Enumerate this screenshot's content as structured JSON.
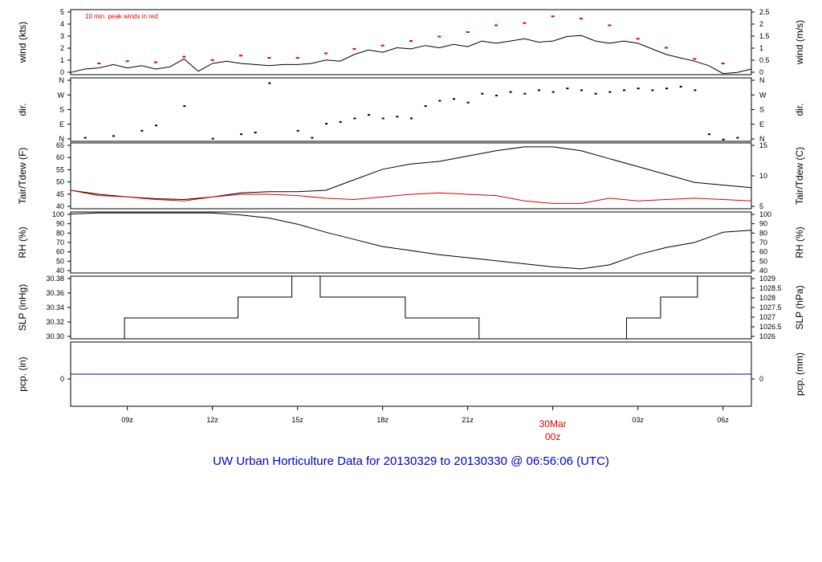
{
  "title": "UW Urban Horticulture Data for 20130329  to  20130330 @ 06:56:06  (UTC)",
  "colors": {
    "data": "#000000",
    "peak": "#e00000",
    "dew": "#e00000",
    "precip": "#0000cc",
    "title": "#0000cc",
    "date": "#e00000"
  },
  "chart_data": [
    {
      "id": "wind",
      "type": "line",
      "ylabel_left": "wind (kts)",
      "ylabel_right": "wind (m/s)",
      "ylim": [
        0,
        5.8
      ],
      "yticks_left": [
        "0",
        "1",
        "2",
        "3",
        "4",
        "5"
      ],
      "yticks_right": [
        "0",
        "0.5",
        "1",
        "1.5",
        "2",
        "2.5"
      ],
      "annotation": "10 min. peak winds in red",
      "series": [
        {
          "x_hours": [
            0,
            0.5,
            1,
            1.5,
            2,
            2.5,
            3,
            3.5,
            4,
            4.5,
            5,
            5.5,
            6,
            6.5,
            7,
            7.5,
            8,
            8.5,
            9,
            9.5,
            10,
            10.5,
            11,
            11.5,
            12,
            12.5,
            13,
            13.5,
            14,
            14.5,
            15,
            15.5,
            16,
            16.5,
            17,
            17.5,
            18,
            18.5,
            19,
            19.5,
            20,
            20.5,
            21,
            21.5,
            22,
            22.5,
            23,
            23.5,
            24
          ],
          "values": [
            0.2,
            0.5,
            0.6,
            0.9,
            0.6,
            0.8,
            0.5,
            0.7,
            1.4,
            0.3,
            1.0,
            1.2,
            1.0,
            0.9,
            0.8,
            0.9,
            0.9,
            1.0,
            1.3,
            1.2,
            1.8,
            2.2,
            2.0,
            2.4,
            2.3,
            2.6,
            2.4,
            2.7,
            2.5,
            3.0,
            2.8,
            3.0,
            3.2,
            2.9,
            3.0,
            3.4,
            3.5,
            3.0,
            2.8,
            3.0,
            2.8,
            2.3,
            1.8,
            1.5,
            1.2,
            0.8,
            0.1,
            0.2,
            0.5
          ]
        }
      ],
      "peak_winds": {
        "x_hours": [
          1,
          2,
          3,
          4,
          5,
          6,
          7,
          8,
          9,
          10,
          11,
          12,
          13,
          14,
          15,
          16,
          17,
          18,
          19,
          20,
          21,
          22,
          23
        ],
        "values": [
          1.0,
          1.2,
          1.1,
          1.6,
          1.3,
          1.7,
          1.5,
          1.5,
          1.9,
          2.3,
          2.6,
          3.0,
          3.4,
          3.8,
          4.4,
          4.6,
          5.2,
          5.0,
          4.4,
          3.2,
          2.4,
          1.4,
          1.0
        ]
      }
    },
    {
      "id": "dir",
      "type": "scatter",
      "ylabel_left": "dir.",
      "ylabel_right": "dir.",
      "ylim": [
        0,
        360
      ],
      "yticks_left": [
        "N",
        "E",
        "S",
        "W",
        "N"
      ],
      "yticks_right": [
        "N",
        "E",
        "S",
        "W",
        "N"
      ],
      "series": [
        {
          "x_hours": [
            0.5,
            1.5,
            2.5,
            3,
            4,
            5,
            6,
            6.5,
            7,
            8,
            8.5,
            9,
            9.5,
            10,
            10.5,
            11,
            11.5,
            12,
            12.5,
            13,
            13.5,
            14,
            14.5,
            15,
            15.5,
            16,
            16.5,
            17,
            17.5,
            18,
            18.5,
            19,
            19.5,
            20,
            20.5,
            21,
            21.5,
            22,
            22.5,
            23,
            23.5
          ],
          "values": [
            20,
            30,
            60,
            90,
            200,
            15,
            40,
            50,
            330,
            60,
            20,
            100,
            110,
            130,
            150,
            130,
            140,
            130,
            200,
            230,
            240,
            220,
            270,
            260,
            280,
            270,
            290,
            280,
            300,
            290,
            270,
            280,
            290,
            300,
            290,
            300,
            310,
            290,
            40,
            10,
            20
          ]
        }
      ]
    },
    {
      "id": "temp",
      "type": "line",
      "ylabel_left": "Tair/Tdew (F)",
      "ylabel_right": "Tair/Tdew (C)",
      "ylim": [
        40,
        65
      ],
      "yticks_left": [
        "40",
        "45",
        "50",
        "55",
        "60",
        "65"
      ],
      "yticks_right": [
        "5",
        "10",
        "15"
      ],
      "series": [
        {
          "x_hours": [
            0,
            1,
            2,
            3,
            4,
            5,
            6,
            7,
            8,
            9,
            10,
            11,
            12,
            13,
            14,
            15,
            16,
            17,
            18,
            19,
            20,
            21,
            22,
            23,
            24
          ],
          "values": [
            47,
            45.5,
            44.5,
            43.8,
            43.5,
            44.5,
            46,
            46.5,
            46.5,
            47,
            51,
            55,
            57,
            58,
            60,
            62,
            63.5,
            63.5,
            62,
            59,
            56,
            53,
            50,
            49,
            48
          ]
        },
        {
          "x_hours": [
            0,
            1,
            2,
            3,
            4,
            5,
            6,
            7,
            8,
            9,
            10,
            11,
            12,
            13,
            14,
            15,
            16,
            17,
            18,
            19,
            20,
            21,
            22,
            23,
            24
          ],
          "values": [
            47,
            45,
            44.5,
            43.5,
            43,
            44.5,
            45.5,
            45.5,
            45,
            44,
            43.5,
            44.5,
            45.5,
            46,
            45.5,
            45,
            43,
            42,
            42,
            44,
            43,
            43.5,
            44,
            43.5,
            43
          ]
        }
      ]
    },
    {
      "id": "rh",
      "type": "line",
      "ylabel_left": "RH (%)",
      "ylabel_right": "RH (%)",
      "ylim": [
        40,
        100
      ],
      "yticks_left": [
        "40",
        "50",
        "60",
        "70",
        "80",
        "90",
        "100"
      ],
      "yticks_right": [
        "40",
        "50",
        "60",
        "70",
        "80",
        "90",
        "100"
      ],
      "series": [
        {
          "x_hours": [
            0,
            1,
            2,
            3,
            4,
            5,
            6,
            7,
            8,
            9,
            10,
            11,
            12,
            13,
            14,
            15,
            16,
            17,
            18,
            19,
            20,
            21,
            22,
            23,
            24
          ],
          "values": [
            98,
            99,
            99,
            99,
            99,
            99,
            97,
            94,
            88,
            80,
            73,
            66,
            62,
            58,
            55,
            52,
            49,
            46,
            44,
            48,
            58,
            65,
            70,
            80,
            82
          ]
        }
      ]
    },
    {
      "id": "slp",
      "type": "line",
      "ylabel_left": "SLP (inHg)",
      "ylabel_right": "SLP (hPa)",
      "ylim": [
        30.3,
        30.39
      ],
      "yticks_left": [
        "30.30",
        "30.32",
        "30.34",
        "30.36",
        "30.38"
      ],
      "yticks_right": [
        "1026",
        "1026.5",
        "1027",
        "1027.5",
        "1028",
        "1028.5",
        "1029"
      ],
      "series": [
        {
          "x_hours": [
            0,
            1.9,
            1.9,
            5.9,
            5.9,
            7.8,
            7.8,
            8.8,
            8.8,
            11.8,
            11.8,
            14.4,
            14.4,
            19.6,
            19.6,
            20.8,
            20.8,
            22.1,
            22.1,
            24
          ],
          "values": [
            30.3,
            30.3,
            30.33,
            30.33,
            30.36,
            30.36,
            30.39,
            30.39,
            30.36,
            30.36,
            30.33,
            30.33,
            30.3,
            30.3,
            30.33,
            30.33,
            30.36,
            30.36,
            30.39,
            30.39
          ]
        }
      ]
    },
    {
      "id": "pcp",
      "type": "line",
      "ylabel_left": "pcp. (in)",
      "ylabel_right": "pcp. (mm)",
      "ylim": [
        -1,
        1
      ],
      "yticks_left": [
        "0"
      ],
      "yticks_right": [
        "0"
      ],
      "series": [
        {
          "x_hours": [
            0,
            24
          ],
          "values": [
            0,
            0
          ]
        }
      ]
    }
  ],
  "x_axis": {
    "labels": [
      "09z",
      "12z",
      "15z",
      "18z",
      "21z",
      "30Mar",
      "00z",
      "03z",
      "06z"
    ],
    "hours": [
      2,
      5,
      8,
      11,
      14,
      17,
      17,
      20,
      23
    ]
  }
}
